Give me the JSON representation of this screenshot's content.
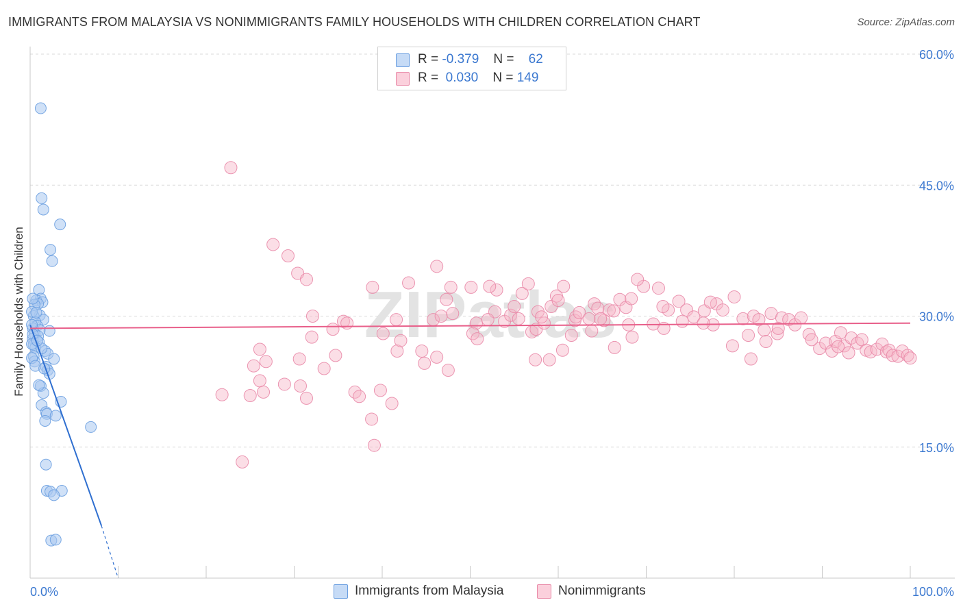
{
  "title": "IMMIGRANTS FROM MALAYSIA VS NONIMMIGRANTS FAMILY HOUSEHOLDS WITH CHILDREN CORRELATION CHART",
  "source": "Source: ZipAtlas.com",
  "legend": {
    "rows": [
      {
        "r_label": "R =",
        "r_value": "-0.379",
        "n_label": "N =",
        "n_value": "62"
      },
      {
        "r_label": "R =",
        "r_value": "0.030",
        "n_label": "N =",
        "n_value": "149"
      }
    ]
  },
  "bottom_legend": {
    "series1": "Immigrants from Malaysia",
    "series2": "Nonimmigrants"
  },
  "colors": {
    "blue_fill": "#a9c8f0",
    "blue_stroke": "#6a9ee0",
    "blue_line": "#2f6fd0",
    "pink_fill": "#f7b6c8",
    "pink_stroke": "#e98aa8",
    "pink_line": "#e85f8a",
    "axis_text": "#3b78d0",
    "grid": "#d9d9d9"
  },
  "chart_data": {
    "type": "scatter",
    "title": "IMMIGRANTS FROM MALAYSIA VS NONIMMIGRANTS FAMILY HOUSEHOLDS WITH CHILDREN CORRELATION CHART",
    "xlabel": "",
    "ylabel": "Family Households with Children",
    "xlim": [
      0,
      100
    ],
    "ylim": [
      0,
      60
    ],
    "x_tick_labels": [
      "0.0%",
      "100.0%"
    ],
    "y_ticks": [
      15,
      30,
      45,
      60
    ],
    "y_tick_labels": [
      "15.0%",
      "30.0%",
      "45.0%",
      "60.0%"
    ],
    "watermark": "ZIPatlas",
    "series": [
      {
        "name": "Immigrants from Malaysia",
        "color": "#a9c8f0",
        "points": [
          [
            1.2,
            53.8
          ],
          [
            1.3,
            43.5
          ],
          [
            1.5,
            42.2
          ],
          [
            3.4,
            40.5
          ],
          [
            2.3,
            37.6
          ],
          [
            2.5,
            36.3
          ],
          [
            1.0,
            33.0
          ],
          [
            1.2,
            32.0
          ],
          [
            0.7,
            31.8
          ],
          [
            1.4,
            31.6
          ],
          [
            0.9,
            31.4
          ],
          [
            0.5,
            31.3
          ],
          [
            1.1,
            30.1
          ],
          [
            0.4,
            30.0
          ],
          [
            1.5,
            29.6
          ],
          [
            0.6,
            29.3
          ],
          [
            0.8,
            28.9
          ],
          [
            0.3,
            28.6
          ],
          [
            1.1,
            28.4
          ],
          [
            2.2,
            28.3
          ],
          [
            0.5,
            28.0
          ],
          [
            0.9,
            27.7
          ],
          [
            0.3,
            27.4
          ],
          [
            1.0,
            27.0
          ],
          [
            0.4,
            26.7
          ],
          [
            0.6,
            26.4
          ],
          [
            1.7,
            26.0
          ],
          [
            2.0,
            25.7
          ],
          [
            0.4,
            25.4
          ],
          [
            2.7,
            25.1
          ],
          [
            0.5,
            24.8
          ],
          [
            1.8,
            24.2
          ],
          [
            2.0,
            23.8
          ],
          [
            2.2,
            23.4
          ],
          [
            1.2,
            22.0
          ],
          [
            1.5,
            21.2
          ],
          [
            3.5,
            20.2
          ],
          [
            1.3,
            19.8
          ],
          [
            1.8,
            19.0
          ],
          [
            1.9,
            18.8
          ],
          [
            2.9,
            18.6
          ],
          [
            1.7,
            18.0
          ],
          [
            6.9,
            17.3
          ],
          [
            1.8,
            13.0
          ],
          [
            1.9,
            10.0
          ],
          [
            2.3,
            9.9
          ],
          [
            3.6,
            10.0
          ],
          [
            2.7,
            9.5
          ],
          [
            2.4,
            4.3
          ],
          [
            2.9,
            4.4
          ],
          [
            0.3,
            32.0
          ],
          [
            0.2,
            30.5
          ],
          [
            0.2,
            29.0
          ],
          [
            0.3,
            27.9
          ],
          [
            0.2,
            26.8
          ],
          [
            0.2,
            25.2
          ],
          [
            0.6,
            24.3
          ],
          [
            1.6,
            24.0
          ],
          [
            1.0,
            22.1
          ],
          [
            0.7,
            30.4
          ],
          [
            1.3,
            26.3
          ],
          [
            0.8,
            27.2
          ]
        ]
      },
      {
        "name": "Nonimmigrants",
        "color": "#f7b6c8",
        "points": [
          [
            22.8,
            47.0
          ],
          [
            27.6,
            38.2
          ],
          [
            29.3,
            36.9
          ],
          [
            30.4,
            34.9
          ],
          [
            31.4,
            34.2
          ],
          [
            38.9,
            33.3
          ],
          [
            32.1,
            30.0
          ],
          [
            35.6,
            29.4
          ],
          [
            34.4,
            28.5
          ],
          [
            36.0,
            29.2
          ],
          [
            32.0,
            27.6
          ],
          [
            30.6,
            25.1
          ],
          [
            34.7,
            25.5
          ],
          [
            33.4,
            24.0
          ],
          [
            26.1,
            26.2
          ],
          [
            25.4,
            24.3
          ],
          [
            26.8,
            24.8
          ],
          [
            26.1,
            22.6
          ],
          [
            28.9,
            22.2
          ],
          [
            30.7,
            22.0
          ],
          [
            31.4,
            20.6
          ],
          [
            21.8,
            21.0
          ],
          [
            25.0,
            20.9
          ],
          [
            26.5,
            21.3
          ],
          [
            36.9,
            21.3
          ],
          [
            37.4,
            20.8
          ],
          [
            39.8,
            21.5
          ],
          [
            41.1,
            20.0
          ],
          [
            38.8,
            18.2
          ],
          [
            39.1,
            15.2
          ],
          [
            24.1,
            13.3
          ],
          [
            40.1,
            28.0
          ],
          [
            41.6,
            29.6
          ],
          [
            41.7,
            26.0
          ],
          [
            42.1,
            27.2
          ],
          [
            43.0,
            33.8
          ],
          [
            44.5,
            26.0
          ],
          [
            45.8,
            29.6
          ],
          [
            46.2,
            25.3
          ],
          [
            44.8,
            24.6
          ],
          [
            46.7,
            30.0
          ],
          [
            47.3,
            31.9
          ],
          [
            46.2,
            35.7
          ],
          [
            47.8,
            33.3
          ],
          [
            48.0,
            30.3
          ],
          [
            50.1,
            33.3
          ],
          [
            50.7,
            29.2
          ],
          [
            50.3,
            28.0
          ],
          [
            50.8,
            27.4
          ],
          [
            53.0,
            33.0
          ],
          [
            52.2,
            33.4
          ],
          [
            52.8,
            30.5
          ],
          [
            52.0,
            29.6
          ],
          [
            53.9,
            29.4
          ],
          [
            54.6,
            30.1
          ],
          [
            55.0,
            31.1
          ],
          [
            55.5,
            29.7
          ],
          [
            55.9,
            32.6
          ],
          [
            56.6,
            33.7
          ],
          [
            57.0,
            28.2
          ],
          [
            57.5,
            28.5
          ],
          [
            57.7,
            30.5
          ],
          [
            58.4,
            29.2
          ],
          [
            58.1,
            29.9
          ],
          [
            59.2,
            31.1
          ],
          [
            59.8,
            32.3
          ],
          [
            60.6,
            33.4
          ],
          [
            60.0,
            31.8
          ],
          [
            61.9,
            29.5
          ],
          [
            62.0,
            29.9
          ],
          [
            62.4,
            30.4
          ],
          [
            63.5,
            29.7
          ],
          [
            64.1,
            31.4
          ],
          [
            64.5,
            30.9
          ],
          [
            65.2,
            29.5
          ],
          [
            65.8,
            30.7
          ],
          [
            66.3,
            30.6
          ],
          [
            67.0,
            31.9
          ],
          [
            67.7,
            31.0
          ],
          [
            68.3,
            32.0
          ],
          [
            69.7,
            33.4
          ],
          [
            69.0,
            34.2
          ],
          [
            71.4,
            33.2
          ],
          [
            72.5,
            30.7
          ],
          [
            71.9,
            31.1
          ],
          [
            73.7,
            31.7
          ],
          [
            74.6,
            30.7
          ],
          [
            75.4,
            29.9
          ],
          [
            76.6,
            30.6
          ],
          [
            77.6,
            29.0
          ],
          [
            78.0,
            31.4
          ],
          [
            78.7,
            30.7
          ],
          [
            80.0,
            32.2
          ],
          [
            81.0,
            29.7
          ],
          [
            81.6,
            27.8
          ],
          [
            82.2,
            30.0
          ],
          [
            82.8,
            29.6
          ],
          [
            83.4,
            28.4
          ],
          [
            84.2,
            30.3
          ],
          [
            84.9,
            28.0
          ],
          [
            85.4,
            29.8
          ],
          [
            86.2,
            29.6
          ],
          [
            86.9,
            29.0
          ],
          [
            87.6,
            29.8
          ],
          [
            88.5,
            27.9
          ],
          [
            88.8,
            27.3
          ],
          [
            89.7,
            26.3
          ],
          [
            90.4,
            26.9
          ],
          [
            91.1,
            26.0
          ],
          [
            91.5,
            27.1
          ],
          [
            92.1,
            28.1
          ],
          [
            92.5,
            26.6
          ],
          [
            93.3,
            27.5
          ],
          [
            94.0,
            26.9
          ],
          [
            94.5,
            27.3
          ],
          [
            95.0,
            26.1
          ],
          [
            95.5,
            25.9
          ],
          [
            96.2,
            26.2
          ],
          [
            96.8,
            26.8
          ],
          [
            97.3,
            25.9
          ],
          [
            97.6,
            26.1
          ],
          [
            98.0,
            25.5
          ],
          [
            98.6,
            25.4
          ],
          [
            99.1,
            26.0
          ],
          [
            99.7,
            25.5
          ],
          [
            100.0,
            25.2
          ],
          [
            93.0,
            25.8
          ],
          [
            91.8,
            26.5
          ],
          [
            85.0,
            28.6
          ],
          [
            83.6,
            27.1
          ],
          [
            79.8,
            26.6
          ],
          [
            77.3,
            31.6
          ],
          [
            76.5,
            29.2
          ],
          [
            74.1,
            29.4
          ],
          [
            72.0,
            28.6
          ],
          [
            70.8,
            29.1
          ],
          [
            68.4,
            27.6
          ],
          [
            66.4,
            26.4
          ],
          [
            64.8,
            29.7
          ],
          [
            61.5,
            27.8
          ],
          [
            63.8,
            28.3
          ],
          [
            60.5,
            26.1
          ],
          [
            59.0,
            25.0
          ],
          [
            57.4,
            25.0
          ],
          [
            68.0,
            29.0
          ],
          [
            81.9,
            25.1
          ],
          [
            47.5,
            23.8
          ]
        ]
      }
    ],
    "trend_lines": [
      {
        "series": "Immigrants from Malaysia",
        "x": [
          0,
          8.1
        ],
        "y": [
          29.0,
          6.0
        ],
        "dashed_extension_to": [
          10.0,
          0
        ]
      },
      {
        "series": "Nonimmigrants",
        "x": [
          0,
          100
        ],
        "y": [
          28.6,
          29.2
        ]
      }
    ]
  }
}
